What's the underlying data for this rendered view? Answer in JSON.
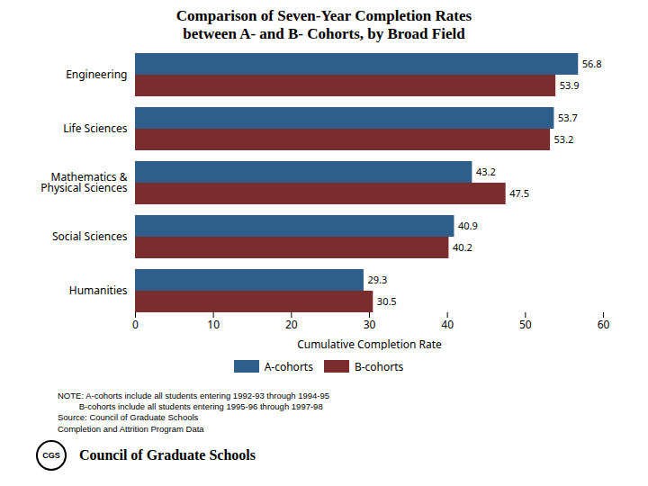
{
  "chart_data": {
    "type": "bar",
    "title": "Comparison of Seven-Year Completion Rates\nbetween A- and B- Cohorts, by Broad Field",
    "orientation": "horizontal",
    "categories": [
      "Humanities",
      "Social Sciences",
      "Mathematics &\nPhysical Sciences",
      "Life Sciences",
      "Engineering"
    ],
    "series": [
      {
        "name": "A-cohorts",
        "color": "#2E5F8A",
        "values": [
          29.3,
          40.9,
          43.2,
          53.7,
          56.8
        ]
      },
      {
        "name": "B-cohorts",
        "color": "#7B2D2D",
        "values": [
          30.5,
          40.2,
          47.5,
          53.2,
          53.9
        ]
      }
    ],
    "xlabel": "Cumulative Completion Rate",
    "xlim": [
      0,
      60
    ],
    "xticks": [
      0,
      10,
      20,
      30,
      40,
      50,
      60
    ],
    "grid": false,
    "data_labels": true,
    "legend": "bottom",
    "annotations": [
      "NOTE: A-cohorts include all students entering 1992-93 through 1994-95",
      "         B-cohorts include all students entering 1995-96 through 1997-98",
      "Source: Council of Graduate Schools",
      "Completion and Attrition Program Data",
      "CGS",
      "Council of Graduate Schools"
    ]
  }
}
